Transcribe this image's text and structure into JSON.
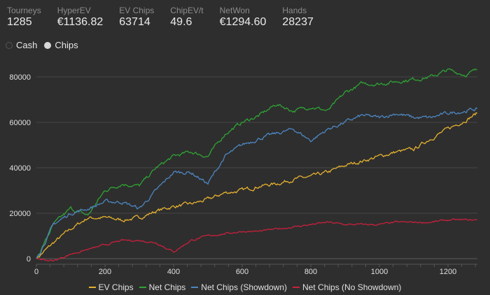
{
  "stats": [
    {
      "label": "Tourneys",
      "value": "1285"
    },
    {
      "label": "HyperEV",
      "value": "€1136.82"
    },
    {
      "label": "EV Chips",
      "value": "63714"
    },
    {
      "label": "ChipEV/t",
      "value": "49.6"
    },
    {
      "label": "NetWon",
      "value": "€1294.60"
    },
    {
      "label": "Hands",
      "value": "28237"
    }
  ],
  "mode": {
    "options": [
      "Cash",
      "Chips"
    ],
    "selected": "Chips"
  },
  "chart_data": {
    "type": "line",
    "title": "",
    "xlabel": "",
    "ylabel": "",
    "xlim": [
      0,
      1285
    ],
    "ylim": [
      -3000,
      85000
    ],
    "xticks": [
      0,
      200,
      400,
      600,
      800,
      1000,
      1200
    ],
    "yticks": [
      0,
      20000,
      40000,
      60000,
      80000
    ],
    "grid": true,
    "legend": "bottom",
    "x": [
      0,
      50,
      100,
      150,
      200,
      250,
      300,
      350,
      400,
      450,
      500,
      550,
      600,
      650,
      700,
      750,
      800,
      850,
      900,
      950,
      1000,
      1050,
      1100,
      1150,
      1200,
      1250,
      1285
    ],
    "series": [
      {
        "name": "EV Chips",
        "color": "#e6b12e",
        "values": [
          0,
          7000,
          13000,
          18000,
          18000,
          17000,
          18000,
          21000,
          23000,
          24000,
          26000,
          29000,
          30000,
          32000,
          33000,
          35000,
          36000,
          38000,
          41000,
          43000,
          45000,
          47000,
          48000,
          53000,
          57000,
          61000,
          64000
        ]
      },
      {
        "name": "Net Chips",
        "color": "#2ea334",
        "values": [
          0,
          15000,
          22000,
          19000,
          30000,
          33000,
          32000,
          40000,
          45000,
          47000,
          45000,
          55000,
          60000,
          63000,
          68000,
          65000,
          67000,
          65000,
          73000,
          77000,
          77000,
          78000,
          79000,
          80000,
          83000,
          81000,
          83000
        ]
      },
      {
        "name": "Net Chips (Showdown)",
        "color": "#4c86c0",
        "values": [
          0,
          15000,
          20000,
          22000,
          25000,
          25000,
          22000,
          30000,
          38000,
          38000,
          33000,
          45000,
          50000,
          53000,
          55000,
          57000,
          52000,
          57000,
          60000,
          63000,
          62000,
          64000,
          62000,
          62000,
          64000,
          65000,
          66000
        ]
      },
      {
        "name": "Net Chips (No Showdown)",
        "color": "#c8203c",
        "values": [
          0,
          -1000,
          2000,
          4000,
          6000,
          8000,
          8000,
          7000,
          3000,
          8000,
          10000,
          11000,
          12000,
          12000,
          13000,
          14000,
          15000,
          16000,
          15000,
          15000,
          15000,
          16000,
          16000,
          16000,
          17000,
          17000,
          17000
        ]
      }
    ]
  }
}
